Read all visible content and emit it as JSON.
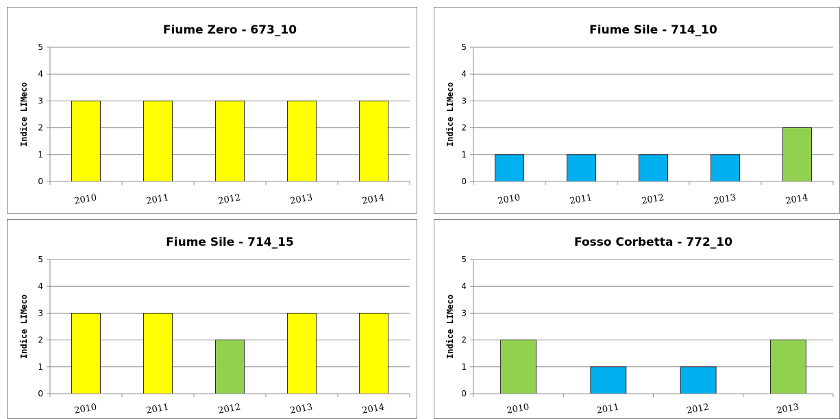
{
  "colors": {
    "yellow": "#FFFF00",
    "green": "#92D050",
    "blue": "#00B0F0",
    "grid": "#8C8C8C",
    "bar_border": "#000000"
  },
  "chart_data": [
    {
      "type": "bar",
      "title": "Fiume Zero - 673_10",
      "ylabel": "Indice  LIMeco",
      "xlabel": "",
      "categories": [
        "2010",
        "2011",
        "2012",
        "2013",
        "2014"
      ],
      "values": [
        3,
        3,
        3,
        3,
        3
      ],
      "bar_colors": [
        "#FFFF00",
        "#FFFF00",
        "#FFFF00",
        "#FFFF00",
        "#FFFF00"
      ],
      "ylim": [
        0,
        5
      ],
      "yticks": [
        "0",
        "1",
        "2",
        "3",
        "4",
        "5"
      ],
      "grid": true,
      "legend": "none"
    },
    {
      "type": "bar",
      "title": "Fiume Sile - 714_10",
      "ylabel": "Indice  LIMeco",
      "xlabel": "",
      "categories": [
        "2010",
        "2011",
        "2012",
        "2013",
        "2014"
      ],
      "values": [
        1,
        1,
        1,
        1,
        2
      ],
      "bar_colors": [
        "#00B0F0",
        "#00B0F0",
        "#00B0F0",
        "#00B0F0",
        "#92D050"
      ],
      "ylim": [
        0,
        5
      ],
      "yticks": [
        "0",
        "1",
        "2",
        "3",
        "4",
        "5"
      ],
      "grid": true,
      "legend": "none"
    },
    {
      "type": "bar",
      "title": "Fiume Sile - 714_15",
      "ylabel": "Indice  LIMeco",
      "xlabel": "",
      "categories": [
        "2010",
        "2011",
        "2012",
        "2013",
        "2014"
      ],
      "values": [
        3,
        3,
        2,
        3,
        3
      ],
      "bar_colors": [
        "#FFFF00",
        "#FFFF00",
        "#92D050",
        "#FFFF00",
        "#FFFF00"
      ],
      "ylim": [
        0,
        5
      ],
      "yticks": [
        "0",
        "1",
        "2",
        "3",
        "4",
        "5"
      ],
      "grid": true,
      "legend": "none"
    },
    {
      "type": "bar",
      "title": "Fosso Corbetta - 772_10",
      "ylabel": "Indice  LIMeco",
      "xlabel": "",
      "categories": [
        "2010",
        "2011",
        "2012",
        "2013"
      ],
      "values": [
        2,
        1,
        1,
        2
      ],
      "bar_colors": [
        "#92D050",
        "#00B0F0",
        "#00B0F0",
        "#92D050"
      ],
      "ylim": [
        0,
        5
      ],
      "yticks": [
        "0",
        "1",
        "2",
        "3",
        "4",
        "5"
      ],
      "grid": true,
      "legend": "none"
    }
  ]
}
